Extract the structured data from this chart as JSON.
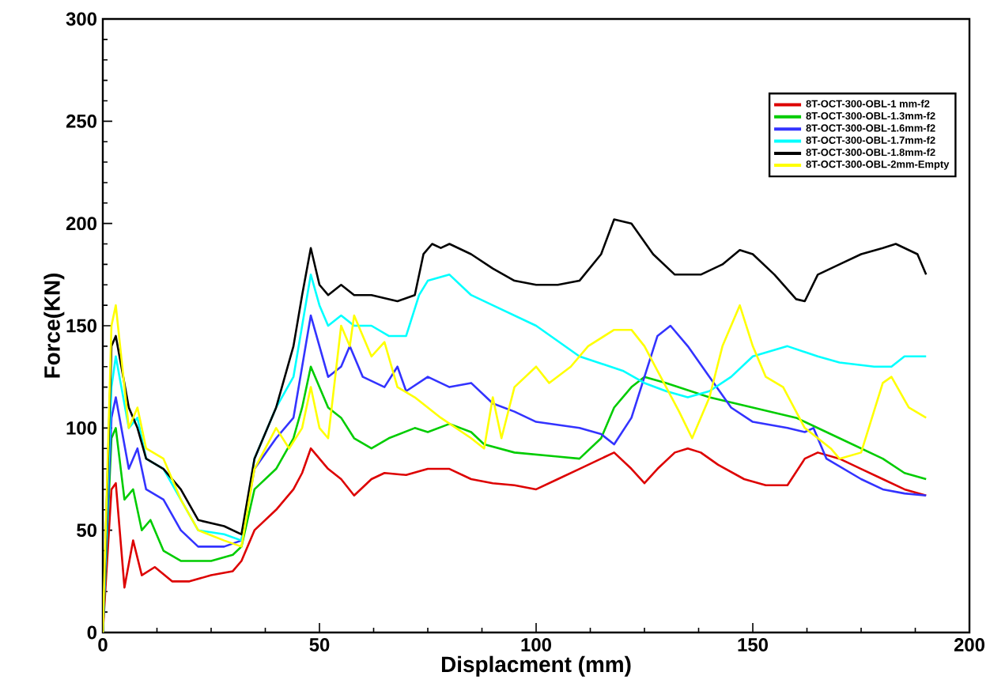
{
  "chart_data": {
    "type": "line",
    "xlabel": "Displacment (mm)",
    "ylabel": "Force(KN)",
    "xlim": [
      0,
      200
    ],
    "ylim": [
      0,
      300
    ],
    "xticks": [
      0,
      50,
      100,
      150,
      200
    ],
    "yticks": [
      0,
      50,
      100,
      150,
      200,
      250,
      300
    ],
    "legend": "top right",
    "marker": "none",
    "line_style": "solid",
    "grid": false,
    "series": [
      {
        "name": "8T-OCT-300-OBL-1  mm-f2",
        "color": "#dd0000",
        "x": [
          0,
          2,
          3,
          5,
          7,
          9,
          12,
          16,
          20,
          25,
          30,
          32,
          35,
          40,
          44,
          46,
          48,
          52,
          55,
          58,
          62,
          65,
          70,
          75,
          80,
          85,
          90,
          95,
          100,
          105,
          110,
          115,
          118,
          122,
          125,
          128,
          132,
          135,
          138,
          142,
          148,
          153,
          158,
          162,
          165,
          170,
          175,
          180,
          185,
          190
        ],
        "values": [
          0,
          70,
          73,
          22,
          45,
          28,
          32,
          25,
          25,
          28,
          30,
          35,
          50,
          60,
          70,
          78,
          90,
          80,
          75,
          67,
          75,
          78,
          77,
          80,
          80,
          75,
          73,
          72,
          70,
          75,
          80,
          85,
          88,
          80,
          73,
          80,
          88,
          90,
          88,
          82,
          75,
          72,
          72,
          85,
          88,
          85,
          80,
          75,
          70,
          67
        ]
      },
      {
        "name": "8T-OCT-300-OBL-1.3mm-f2",
        "color": "#00cc00",
        "x": [
          0,
          2,
          3,
          5,
          7,
          9,
          11,
          14,
          18,
          25,
          30,
          32,
          35,
          40,
          44,
          46,
          48,
          52,
          55,
          58,
          62,
          66,
          72,
          75,
          80,
          85,
          88,
          95,
          105,
          110,
          115,
          118,
          122,
          125,
          130,
          140,
          150,
          160,
          170,
          180,
          185,
          190
        ],
        "values": [
          0,
          95,
          100,
          65,
          70,
          50,
          55,
          40,
          35,
          35,
          38,
          42,
          70,
          80,
          95,
          110,
          130,
          110,
          105,
          95,
          90,
          95,
          100,
          98,
          102,
          98,
          92,
          88,
          86,
          85,
          95,
          110,
          120,
          125,
          122,
          115,
          110,
          105,
          95,
          85,
          78,
          75
        ]
      },
      {
        "name": "8T-OCT-300-OBL-1.6mm-f2",
        "color": "#3333ff",
        "x": [
          0,
          2,
          3,
          6,
          8,
          10,
          14,
          18,
          22,
          28,
          32,
          35,
          40,
          44,
          46,
          48,
          50,
          52,
          55,
          57,
          60,
          65,
          68,
          70,
          75,
          80,
          85,
          90,
          95,
          100,
          110,
          115,
          118,
          122,
          125,
          128,
          131,
          135,
          140,
          145,
          150,
          158,
          162,
          164,
          167,
          175,
          180,
          185,
          190
        ],
        "values": [
          0,
          105,
          115,
          80,
          90,
          70,
          65,
          50,
          42,
          42,
          45,
          80,
          95,
          105,
          130,
          155,
          140,
          125,
          130,
          140,
          125,
          120,
          130,
          118,
          125,
          120,
          122,
          112,
          108,
          103,
          100,
          97,
          92,
          105,
          125,
          145,
          150,
          140,
          125,
          110,
          103,
          100,
          98,
          100,
          85,
          75,
          70,
          68,
          67
        ]
      },
      {
        "name": "8T-OCT-300-OBL-1.7mm-f2",
        "color": "#00ffff",
        "x": [
          0,
          2,
          3,
          6,
          8,
          10,
          14,
          18,
          22,
          28,
          32,
          35,
          40,
          44,
          46,
          48,
          50,
          52,
          55,
          58,
          62,
          66,
          70,
          73,
          75,
          80,
          85,
          90,
          100,
          110,
          120,
          125,
          130,
          135,
          140,
          145,
          150,
          158,
          165,
          170,
          178,
          182,
          185,
          190
        ],
        "values": [
          0,
          120,
          135,
          100,
          105,
          85,
          80,
          65,
          50,
          48,
          45,
          85,
          110,
          125,
          150,
          175,
          160,
          150,
          155,
          150,
          150,
          145,
          145,
          165,
          172,
          175,
          165,
          160,
          150,
          135,
          128,
          122,
          118,
          115,
          118,
          125,
          135,
          140,
          135,
          132,
          130,
          130,
          135,
          135
        ]
      },
      {
        "name": "8T-OCT-300-OBL-1.8mm-f2",
        "color": "#000000",
        "x": [
          0,
          2,
          3,
          6,
          8,
          10,
          14,
          18,
          22,
          28,
          32,
          35,
          40,
          44,
          46,
          48,
          50,
          52,
          55,
          58,
          62,
          68,
          72,
          74,
          76,
          78,
          80,
          85,
          90,
          95,
          100,
          105,
          110,
          115,
          118,
          122,
          127,
          132,
          138,
          143,
          147,
          150,
          155,
          160,
          162,
          165,
          170,
          175,
          180,
          183,
          188,
          190
        ],
        "values": [
          0,
          140,
          145,
          110,
          100,
          85,
          80,
          70,
          55,
          52,
          48,
          85,
          110,
          140,
          165,
          188,
          170,
          165,
          170,
          165,
          165,
          162,
          165,
          185,
          190,
          188,
          190,
          185,
          178,
          172,
          170,
          170,
          172,
          185,
          202,
          200,
          185,
          175,
          175,
          180,
          187,
          185,
          175,
          163,
          162,
          175,
          180,
          185,
          188,
          190,
          185,
          175
        ]
      },
      {
        "name": "8T-OCT-300-OBL-2mm-Empty",
        "color": "#ffff00",
        "x": [
          0,
          2,
          3,
          6,
          8,
          10,
          14,
          18,
          22,
          28,
          32,
          35,
          40,
          43,
          46,
          48,
          50,
          52,
          55,
          57,
          58,
          62,
          65,
          68,
          72,
          78,
          85,
          88,
          90,
          92,
          95,
          100,
          103,
          108,
          112,
          118,
          122,
          125,
          130,
          133,
          136,
          140,
          143,
          147,
          150,
          153,
          157,
          162,
          168,
          170,
          175,
          180,
          182,
          186,
          190
        ],
        "values": [
          0,
          150,
          160,
          100,
          110,
          90,
          85,
          65,
          50,
          45,
          42,
          80,
          100,
          90,
          100,
          120,
          100,
          95,
          150,
          140,
          155,
          135,
          142,
          120,
          115,
          105,
          95,
          90,
          115,
          95,
          120,
          130,
          122,
          130,
          140,
          148,
          148,
          140,
          120,
          108,
          95,
          115,
          140,
          160,
          140,
          125,
          120,
          100,
          90,
          85,
          88,
          122,
          125,
          110,
          105
        ]
      }
    ]
  }
}
